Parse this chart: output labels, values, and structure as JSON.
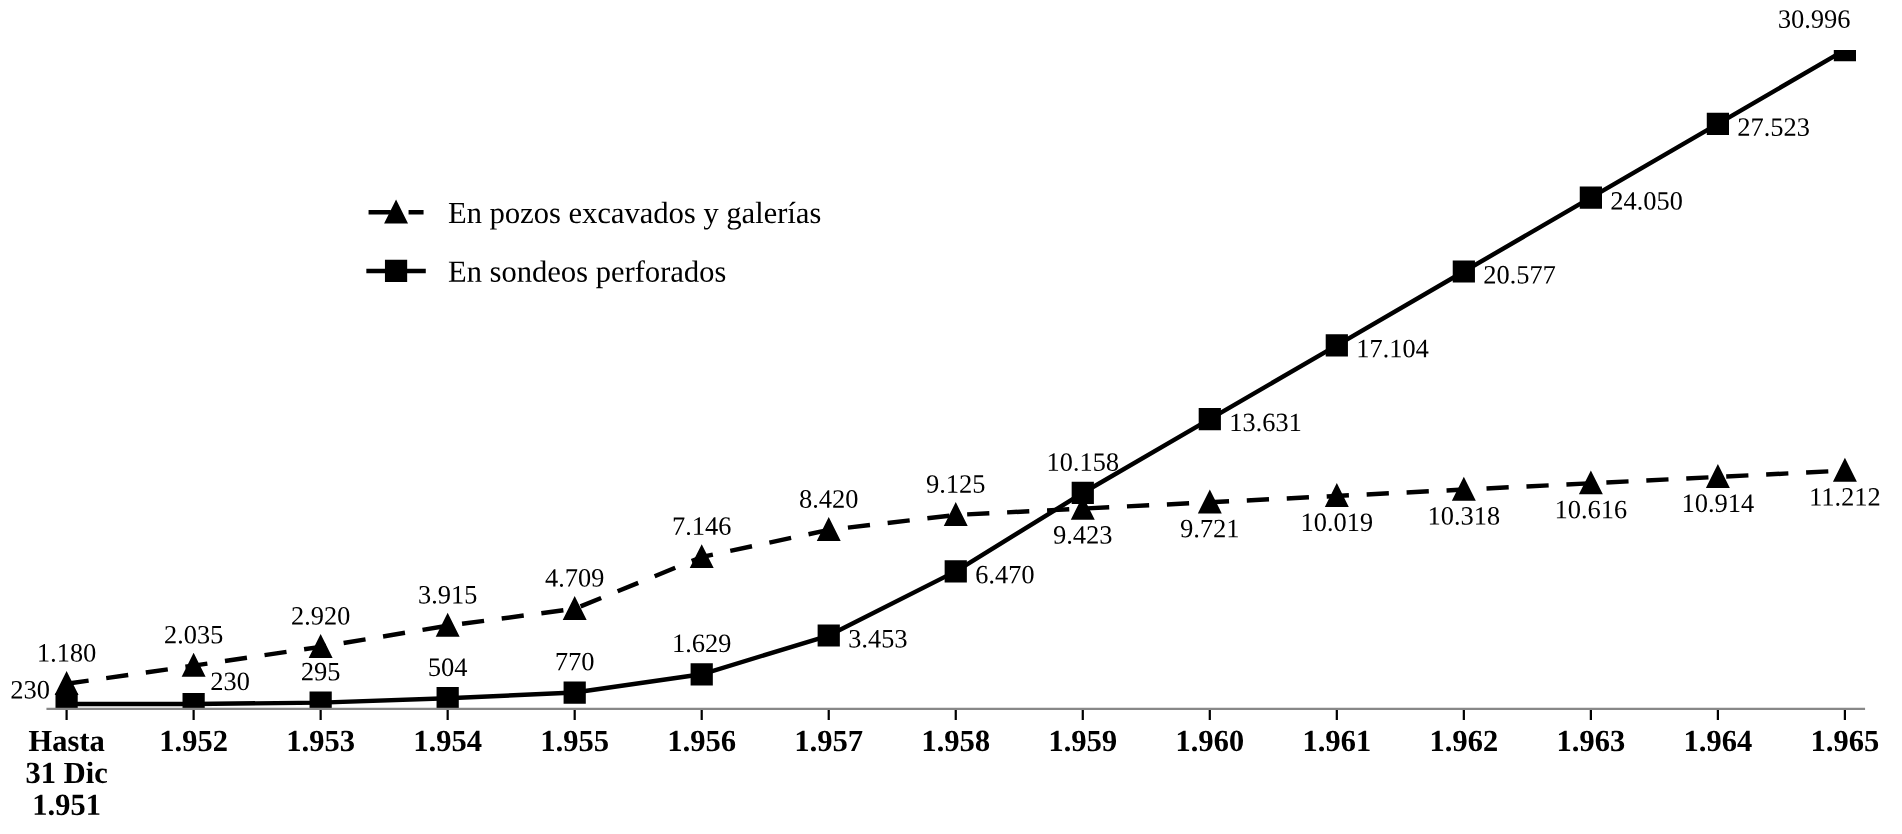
{
  "chart_data": {
    "type": "line",
    "categories": [
      "Hasta\n31 Dic\n1.951",
      "1.952",
      "1.953",
      "1.954",
      "1.955",
      "1.956",
      "1.957",
      "1.958",
      "1.959",
      "1.960",
      "1.961",
      "1.962",
      "1.963",
      "1.964",
      "1.965"
    ],
    "series": [
      {
        "name": "En pozos excavados y galerías",
        "color": "#000000",
        "marker": "triangle",
        "line_style": "dashed",
        "values": [
          1180,
          2035,
          2920,
          3915,
          4709,
          7146,
          8420,
          9125,
          9423,
          9721,
          10019,
          10318,
          10616,
          10914,
          11212
        ],
        "value_labels": [
          "1.180",
          "2.035",
          "2.920",
          "3.915",
          "4.709",
          "7.146",
          "8.420",
          "9.125",
          "9.423",
          "9.721",
          "10.019",
          "10.318",
          "10.616",
          "10.914",
          "11.212"
        ]
      },
      {
        "name": "En sondeos perforados",
        "color": "#000000",
        "marker": "square",
        "line_style": "solid",
        "values": [
          230,
          230,
          295,
          504,
          770,
          1629,
          3453,
          6470,
          10158,
          13631,
          17104,
          20577,
          24050,
          27523,
          30996
        ],
        "value_labels": [
          "230",
          "230",
          "295",
          "504",
          "770",
          "1.629",
          "3.453",
          "6.470",
          "10.158",
          "13.631",
          "17.104",
          "20.577",
          "24.050",
          "27.523",
          "30.996"
        ]
      }
    ],
    "legend": "top left",
    "grid": false,
    "tick_labels": "x"
  }
}
